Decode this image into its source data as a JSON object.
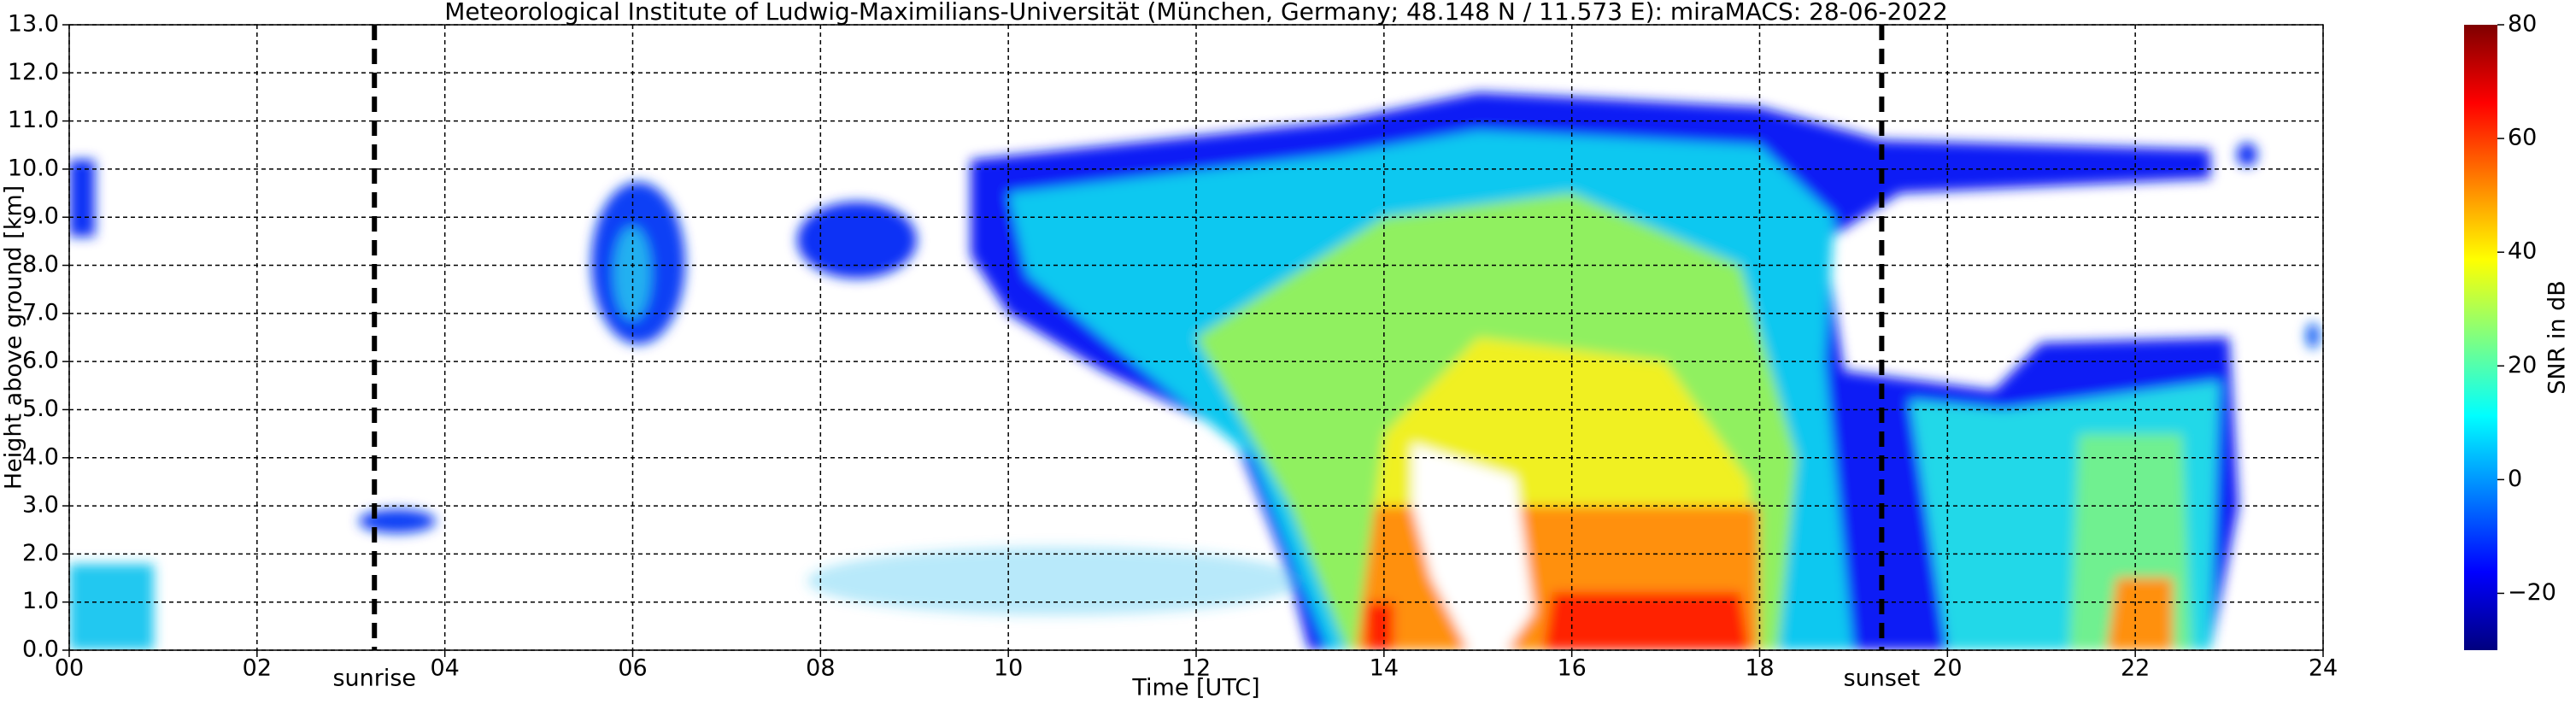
{
  "chart_data": {
    "type": "radar-timeheight",
    "title": "Meteorological Institute of Ludwig-Maximilians-Universität (München, Germany; 48.148 N / 11.573 E):    miraMACS: 28-06-2022",
    "x_label": "Time [UTC]",
    "y_label": "Height above ground [km]",
    "xlim": [
      0,
      24
    ],
    "xticks": [
      {
        "value": 0,
        "label": "00"
      },
      {
        "value": 2,
        "label": "02"
      },
      {
        "value": 4,
        "label": "04"
      },
      {
        "value": 6,
        "label": "06"
      },
      {
        "value": 8,
        "label": "08"
      },
      10,
      12,
      14,
      16,
      18,
      20,
      22,
      24
    ],
    "ylim": [
      0,
      13
    ],
    "yticks": [
      {
        "value": 0,
        "label": "0.0"
      },
      {
        "value": 1,
        "label": "1.0"
      },
      {
        "value": 2,
        "label": "2.0"
      },
      {
        "value": 3,
        "label": "3.0"
      },
      {
        "value": 4,
        "label": "4.0"
      },
      {
        "value": 5,
        "label": "5.0"
      },
      {
        "value": 6,
        "label": "6.0"
      },
      {
        "value": 7,
        "label": "7.0"
      },
      {
        "value": 8,
        "label": "8.0"
      },
      {
        "value": 9,
        "label": "9.0"
      },
      {
        "value": 10,
        "label": "10.0"
      },
      {
        "value": 11,
        "label": "11.0"
      },
      {
        "value": 12,
        "label": "12.0"
      },
      {
        "value": 13,
        "label": "13.0"
      }
    ],
    "grid": true,
    "vlines": [
      {
        "x": 3.25,
        "label": "sunrise"
      },
      {
        "x": 19.3,
        "label": "sunset"
      }
    ],
    "colorbar": {
      "label": "SNR in dB",
      "lim": [
        -30,
        80
      ],
      "ticks": [
        {
          "value": -20,
          "label": "−20"
        },
        0,
        20,
        40,
        60,
        80
      ],
      "colormap": [
        "#00007f",
        "#0000ff",
        "#0080ff",
        "#00ffff",
        "#80ff80",
        "#ffff00",
        "#ff8000",
        "#ff0000",
        "#7f0000"
      ]
    }
  }
}
